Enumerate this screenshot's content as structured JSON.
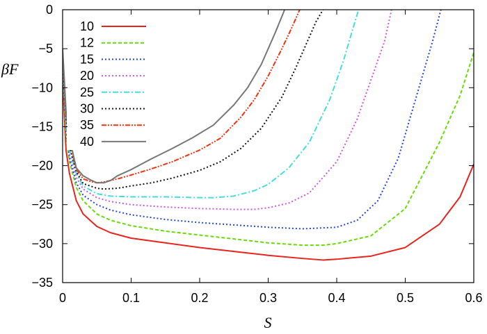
{
  "chart_data": {
    "type": "line",
    "title": "",
    "xlabel": "S",
    "ylabel": "βF",
    "xlim": [
      0,
      0.6
    ],
    "ylim": [
      -35,
      0
    ],
    "xticks": [
      "0",
      "0.1",
      "0.2",
      "0.3",
      "0.4",
      "0.5",
      "0.6"
    ],
    "yticks": [
      "0",
      "−5",
      "−10",
      "−15",
      "−20",
      "−25",
      "−30",
      "−35"
    ],
    "grid": false,
    "legend_position": "top-left",
    "series": [
      {
        "name": "10",
        "color": "#e8231c",
        "dash": "solid",
        "x": [
          0.0,
          0.005,
          0.01,
          0.02,
          0.03,
          0.05,
          0.07,
          0.1,
          0.15,
          0.2,
          0.25,
          0.3,
          0.35,
          0.38,
          0.4,
          0.45,
          0.5,
          0.55,
          0.58,
          0.6
        ],
        "y": [
          -9,
          -18,
          -21,
          -24.5,
          -26.2,
          -27.8,
          -28.6,
          -29.3,
          -29.9,
          -30.5,
          -31.0,
          -31.5,
          -31.9,
          -32.1,
          -32.0,
          -31.6,
          -30.5,
          -27.5,
          -24.0,
          -19.8
        ]
      },
      {
        "name": "12",
        "color": "#66dd00",
        "dash": "dashed",
        "x": [
          0.0,
          0.005,
          0.01,
          0.02,
          0.03,
          0.05,
          0.07,
          0.1,
          0.15,
          0.2,
          0.25,
          0.3,
          0.35,
          0.38,
          0.4,
          0.45,
          0.5,
          0.55,
          0.58,
          0.6
        ],
        "y": [
          -8,
          -16,
          -19.5,
          -22.8,
          -24.5,
          -26.2,
          -27.0,
          -27.7,
          -28.4,
          -28.9,
          -29.4,
          -29.9,
          -30.2,
          -30.2,
          -30.0,
          -29.0,
          -25.5,
          -17.0,
          -11.0,
          -5.5
        ]
      },
      {
        "name": "15",
        "color": "#2244dd",
        "dash": "dotted",
        "x": [
          0.0,
          0.005,
          0.01,
          0.02,
          0.03,
          0.05,
          0.07,
          0.1,
          0.15,
          0.2,
          0.25,
          0.3,
          0.35,
          0.4,
          0.43,
          0.46,
          0.49,
          0.52,
          0.54,
          0.552
        ],
        "y": [
          -7.5,
          -15.5,
          -19,
          -22.2,
          -23.8,
          -25.0,
          -25.7,
          -26.3,
          -26.9,
          -27.3,
          -27.6,
          -27.9,
          -28.1,
          -27.9,
          -27.0,
          -24.5,
          -19.0,
          -10.0,
          -4.0,
          0.0
        ]
      },
      {
        "name": "20",
        "color": "#cc55dd",
        "dash": "dotted",
        "x": [
          0.0,
          0.005,
          0.01,
          0.02,
          0.03,
          0.05,
          0.07,
          0.1,
          0.15,
          0.2,
          0.25,
          0.28,
          0.3,
          0.33,
          0.36,
          0.4,
          0.43,
          0.45,
          0.47,
          0.48
        ],
        "y": [
          -7,
          -15,
          -18.5,
          -21.5,
          -23.0,
          -24.1,
          -24.6,
          -25.0,
          -25.3,
          -25.5,
          -25.6,
          -25.6,
          -25.4,
          -24.8,
          -23.5,
          -19.5,
          -14.0,
          -9.0,
          -4.0,
          0.0
        ]
      },
      {
        "name": "25",
        "color": "#44dddd",
        "dash": "dashdot",
        "x": [
          0.0,
          0.005,
          0.01,
          0.02,
          0.03,
          0.05,
          0.07,
          0.1,
          0.15,
          0.2,
          0.22,
          0.25,
          0.28,
          0.3,
          0.33,
          0.36,
          0.39,
          0.41,
          0.425,
          0.432
        ],
        "y": [
          -6.5,
          -14.5,
          -18,
          -21,
          -22.6,
          -23.6,
          -23.9,
          -24.0,
          -24.0,
          -24.1,
          -24.1,
          -23.9,
          -23.2,
          -22.4,
          -20.3,
          -17.0,
          -11.5,
          -6.5,
          -2.0,
          0.0
        ]
      },
      {
        "name": "30",
        "color": "#111111",
        "dash": "dotted",
        "x": [
          0.0,
          0.005,
          0.01,
          0.02,
          0.03,
          0.05,
          0.06,
          0.08,
          0.1,
          0.13,
          0.16,
          0.2,
          0.23,
          0.26,
          0.29,
          0.32,
          0.34,
          0.355,
          0.37,
          0.38
        ],
        "y": [
          -6,
          -14,
          -17.5,
          -20.8,
          -22.3,
          -22.9,
          -23.0,
          -22.9,
          -22.6,
          -22.2,
          -21.6,
          -20.6,
          -19.5,
          -17.8,
          -15.2,
          -11.2,
          -7.5,
          -4.5,
          -1.5,
          0.0
        ]
      },
      {
        "name": "35",
        "color": "#ee3311",
        "dash": "dashdotdot",
        "x": [
          0.0,
          0.005,
          0.01,
          0.02,
          0.03,
          0.04,
          0.05,
          0.06,
          0.08,
          0.1,
          0.13,
          0.16,
          0.2,
          0.23,
          0.26,
          0.28,
          0.3,
          0.32,
          0.335,
          0.346
        ],
        "y": [
          -5.5,
          -13.5,
          -17,
          -20.5,
          -21.7,
          -22.0,
          -22.2,
          -22.1,
          -21.7,
          -21.2,
          -20.4,
          -19.5,
          -18.0,
          -16.5,
          -13.8,
          -11.5,
          -8.5,
          -5.0,
          -2.2,
          0.0
        ]
      },
      {
        "name": "40",
        "color": "#777777",
        "dash": "solid",
        "x": [
          0.0,
          0.005,
          0.01,
          0.02,
          0.03,
          0.04,
          0.05,
          0.06,
          0.07,
          0.08,
          0.1,
          0.13,
          0.16,
          0.19,
          0.22,
          0.25,
          0.27,
          0.29,
          0.31,
          0.324
        ],
        "y": [
          -5,
          -13,
          -16.5,
          -20.3,
          -21.3,
          -21.8,
          -22.2,
          -22.2,
          -21.9,
          -21.3,
          -20.5,
          -19.1,
          -17.8,
          -16.4,
          -14.8,
          -12.2,
          -10.0,
          -7.0,
          -3.0,
          0.0
        ]
      }
    ]
  }
}
